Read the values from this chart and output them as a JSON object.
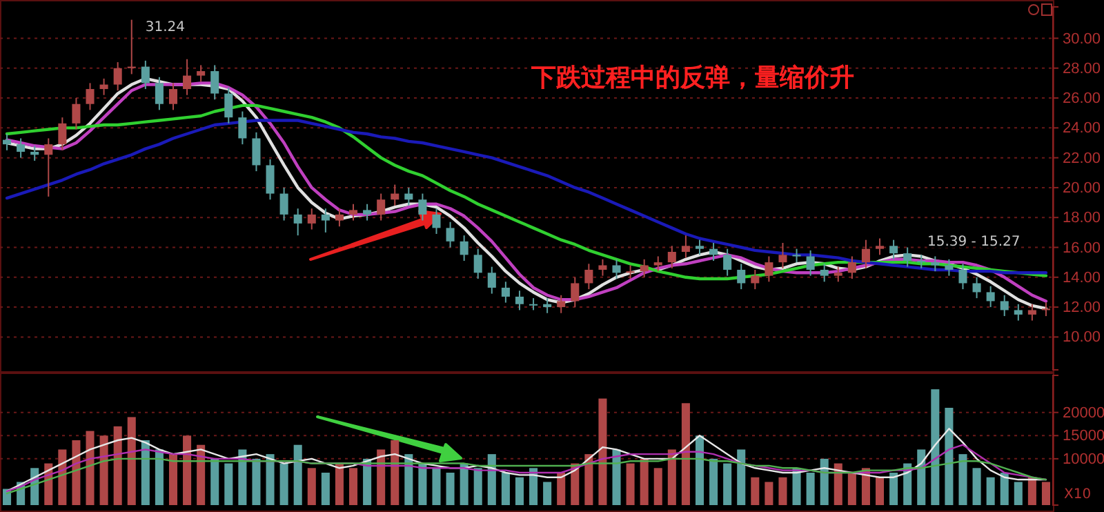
{
  "chart_data": [
    {
      "type": "candlestick",
      "title": "下跌过程中的反弹，量缩价升",
      "tick_labels": "y",
      "grid": "y",
      "ylim": [
        7.8,
        32.1
      ],
      "yticks": [
        {
          "value": 10,
          "label": "10.00"
        },
        {
          "value": 12,
          "label": "12.00"
        },
        {
          "value": 14,
          "label": "14.00"
        },
        {
          "value": 16,
          "label": "16.00"
        },
        {
          "value": 18,
          "label": "18.00"
        },
        {
          "value": 20,
          "label": "20.00"
        },
        {
          "value": 22,
          "label": "22.00"
        },
        {
          "value": 24,
          "label": "24.00"
        },
        {
          "value": 26,
          "label": "26.00"
        },
        {
          "value": 28,
          "label": "28.00"
        },
        {
          "value": 30,
          "label": "30.00"
        }
      ],
      "categories": [
        null,
        null,
        null,
        null,
        null,
        null,
        null,
        null,
        null,
        null,
        null,
        null,
        null,
        null,
        null,
        null,
        null,
        null,
        null,
        null,
        null,
        null,
        null,
        null,
        null,
        null,
        null,
        null,
        null,
        null,
        null,
        null,
        null,
        null,
        null,
        null,
        null,
        null,
        null,
        null,
        null,
        null,
        null,
        null,
        null,
        null,
        null,
        null,
        null,
        null,
        null,
        null,
        null,
        null,
        null,
        null,
        null,
        null,
        null,
        null,
        null,
        null,
        null,
        null,
        null,
        null,
        null,
        null,
        null,
        null,
        null,
        null,
        null,
        null,
        null,
        null
      ],
      "ohlc": [
        [
          23.2,
          23.6,
          22.5,
          22.9
        ],
        [
          22.9,
          23.3,
          22.0,
          22.4
        ],
        [
          22.4,
          22.8,
          21.8,
          22.2
        ],
        [
          22.2,
          23.3,
          19.4,
          22.9
        ],
        [
          22.9,
          24.7,
          22.5,
          24.3
        ],
        [
          24.3,
          26.0,
          23.9,
          25.6
        ],
        [
          25.6,
          27.0,
          25.2,
          26.6
        ],
        [
          26.6,
          27.3,
          26.2,
          26.9
        ],
        [
          26.9,
          28.4,
          26.5,
          28.0
        ],
        [
          28.0,
          31.24,
          27.6,
          28.1
        ],
        [
          28.1,
          28.5,
          26.6,
          27.0
        ],
        [
          27.0,
          27.4,
          25.2,
          25.6
        ],
        [
          25.6,
          27.0,
          25.2,
          26.6
        ],
        [
          26.6,
          28.6,
          26.2,
          27.5
        ],
        [
          27.5,
          28.2,
          27.1,
          27.8
        ],
        [
          27.8,
          28.2,
          25.9,
          26.3
        ],
        [
          26.3,
          26.7,
          24.3,
          24.7
        ],
        [
          24.7,
          25.1,
          22.9,
          23.3
        ],
        [
          23.3,
          23.7,
          21.1,
          21.5
        ],
        [
          21.5,
          21.9,
          19.2,
          19.6
        ],
        [
          19.6,
          20.0,
          17.8,
          18.2
        ],
        [
          18.2,
          18.6,
          16.8,
          17.6
        ],
        [
          17.6,
          18.6,
          17.2,
          18.2
        ],
        [
          18.2,
          18.6,
          17.0,
          17.8
        ],
        [
          17.8,
          18.6,
          17.4,
          18.2
        ],
        [
          18.2,
          18.9,
          17.8,
          18.5
        ],
        [
          18.5,
          18.9,
          17.8,
          18.2
        ],
        [
          18.2,
          19.6,
          17.8,
          19.2
        ],
        [
          19.2,
          20.2,
          18.8,
          19.6
        ],
        [
          19.6,
          20.0,
          18.8,
          19.2
        ],
        [
          19.2,
          19.6,
          17.8,
          18.2
        ],
        [
          18.2,
          18.6,
          16.9,
          17.3
        ],
        [
          17.3,
          17.7,
          16.0,
          16.4
        ],
        [
          16.4,
          16.8,
          15.1,
          15.5
        ],
        [
          15.5,
          15.9,
          13.9,
          14.3
        ],
        [
          14.3,
          14.7,
          12.9,
          13.3
        ],
        [
          13.3,
          13.7,
          12.3,
          12.7
        ],
        [
          12.7,
          13.1,
          11.8,
          12.2
        ],
        [
          12.2,
          12.6,
          11.8,
          12.2
        ],
        [
          12.2,
          12.6,
          11.6,
          12.0
        ],
        [
          12.0,
          12.8,
          11.6,
          12.4
        ],
        [
          12.4,
          14.0,
          12.0,
          13.6
        ],
        [
          13.6,
          14.9,
          13.2,
          14.5
        ],
        [
          14.5,
          15.2,
          14.1,
          14.8
        ],
        [
          14.8,
          15.2,
          13.9,
          14.3
        ],
        [
          14.3,
          14.8,
          13.9,
          14.4
        ],
        [
          14.4,
          15.2,
          14.0,
          14.8
        ],
        [
          14.8,
          15.4,
          14.4,
          15.0
        ],
        [
          15.0,
          16.1,
          14.6,
          15.7
        ],
        [
          15.7,
          16.8,
          15.3,
          16.1
        ],
        [
          16.1,
          16.5,
          15.5,
          15.9
        ],
        [
          15.9,
          16.3,
          15.1,
          15.5
        ],
        [
          15.5,
          15.9,
          14.1,
          14.5
        ],
        [
          14.5,
          14.9,
          13.2,
          13.6
        ],
        [
          13.6,
          14.5,
          13.2,
          14.1
        ],
        [
          14.1,
          15.4,
          13.7,
          15.0
        ],
        [
          15.0,
          16.3,
          14.6,
          15.5
        ],
        [
          15.5,
          15.9,
          15.0,
          15.4
        ],
        [
          15.4,
          15.8,
          14.1,
          14.5
        ],
        [
          14.5,
          14.9,
          13.7,
          14.1
        ],
        [
          14.1,
          14.7,
          13.7,
          14.3
        ],
        [
          14.3,
          15.4,
          13.9,
          15.0
        ],
        [
          15.0,
          16.5,
          14.6,
          15.9
        ],
        [
          15.9,
          16.6,
          15.5,
          16.1
        ],
        [
          16.1,
          16.5,
          15.2,
          15.6
        ],
        [
          15.6,
          16.0,
          14.7,
          15.1
        ],
        [
          15.1,
          15.5,
          14.6,
          15.0
        ],
        [
          15.0,
          15.4,
          14.4,
          14.8
        ],
        [
          14.8,
          15.2,
          14.1,
          14.5
        ],
        [
          14.5,
          14.9,
          13.2,
          13.6
        ],
        [
          13.6,
          14.0,
          12.6,
          13.0
        ],
        [
          13.0,
          13.4,
          12.0,
          12.4
        ],
        [
          12.4,
          12.8,
          11.4,
          11.8
        ],
        [
          11.8,
          12.2,
          11.1,
          11.5
        ],
        [
          11.5,
          12.2,
          11.1,
          11.8
        ],
        [
          11.8,
          12.3,
          11.4,
          11.9
        ]
      ],
      "colors": [
        "#5aa0a0",
        "#5aa0a0",
        "#5aa0a0",
        "#b04848",
        "#b04848",
        "#b04848",
        "#b04848",
        "#b04848",
        "#b04848",
        "#b04848",
        "#5aa0a0",
        "#5aa0a0",
        "#b04848",
        "#b04848",
        "#b04848",
        "#5aa0a0",
        "#5aa0a0",
        "#5aa0a0",
        "#5aa0a0",
        "#5aa0a0",
        "#5aa0a0",
        "#5aa0a0",
        "#b04848",
        "#5aa0a0",
        "#b04848",
        "#b04848",
        "#5aa0a0",
        "#b04848",
        "#b04848",
        "#5aa0a0",
        "#5aa0a0",
        "#5aa0a0",
        "#5aa0a0",
        "#5aa0a0",
        "#5aa0a0",
        "#5aa0a0",
        "#5aa0a0",
        "#5aa0a0",
        "#5aa0a0",
        "#5aa0a0",
        "#b04848",
        "#b04848",
        "#b04848",
        "#b04848",
        "#5aa0a0",
        "#b04848",
        "#b04848",
        "#b04848",
        "#b04848",
        "#b04848",
        "#5aa0a0",
        "#5aa0a0",
        "#5aa0a0",
        "#5aa0a0",
        "#b04848",
        "#b04848",
        "#b04848",
        "#5aa0a0",
        "#5aa0a0",
        "#5aa0a0",
        "#b04848",
        "#b04848",
        "#b04848",
        "#b04848",
        "#5aa0a0",
        "#5aa0a0",
        "#5aa0a0",
        "#5aa0a0",
        "#5aa0a0",
        "#5aa0a0",
        "#5aa0a0",
        "#5aa0a0",
        "#5aa0a0",
        "#5aa0a0",
        "#b04848",
        "#b04848"
      ],
      "series": [
        {
          "type": "line",
          "color": "#e0e0e0",
          "values": [
            23.0,
            22.8,
            22.6,
            22.6,
            22.9,
            23.5,
            24.3,
            25.3,
            26.3,
            26.9,
            27.3,
            27.1,
            26.9,
            26.9,
            26.9,
            26.8,
            26.6,
            25.8,
            24.7,
            23.1,
            21.5,
            20.0,
            19.0,
            18.3,
            17.9,
            18.1,
            18.2,
            18.4,
            18.7,
            18.9,
            18.9,
            18.7,
            18.1,
            17.3,
            16.3,
            15.4,
            14.4,
            13.6,
            13.0,
            12.5,
            12.3,
            12.5,
            12.9,
            13.5,
            14.0,
            14.3,
            14.5,
            14.5,
            14.8,
            15.2,
            15.5,
            15.7,
            15.5,
            15.1,
            14.7,
            14.5,
            14.6,
            14.9,
            15.0,
            14.9,
            14.6,
            14.5,
            14.7,
            15.1,
            15.4,
            15.5,
            15.4,
            15.1,
            14.9,
            14.6,
            14.2,
            13.7,
            13.1,
            12.5,
            12.1,
            11.9
          ]
        },
        {
          "type": "line",
          "color": "#c040c0",
          "values": [
            23.2,
            23.0,
            22.8,
            22.7,
            22.6,
            23.0,
            23.8,
            24.7,
            25.6,
            26.5,
            26.9,
            26.9,
            26.9,
            26.9,
            27.0,
            27.0,
            26.7,
            26.2,
            25.4,
            24.3,
            23.0,
            21.4,
            20.0,
            19.2,
            18.5,
            18.2,
            18.2,
            18.3,
            18.4,
            18.7,
            18.9,
            18.9,
            18.6,
            18.1,
            17.3,
            16.4,
            15.3,
            14.2,
            13.3,
            12.8,
            12.5,
            12.5,
            12.7,
            13.0,
            13.3,
            13.8,
            14.3,
            14.6,
            14.8,
            14.9,
            15.1,
            15.3,
            15.5,
            15.3,
            14.9,
            14.6,
            14.4,
            14.3,
            14.3,
            14.3,
            14.4,
            14.6,
            14.8,
            15.0,
            15.2,
            15.2,
            15.1,
            15.1,
            15.0,
            15.0,
            14.8,
            14.5,
            14.0,
            13.4,
            12.8,
            12.4
          ]
        },
        {
          "type": "line",
          "color": "#30d030",
          "values": [
            23.6,
            23.7,
            23.8,
            23.9,
            24.0,
            24.0,
            24.1,
            24.2,
            24.2,
            24.3,
            24.4,
            24.5,
            24.6,
            24.7,
            24.8,
            25.1,
            25.3,
            25.5,
            25.5,
            25.3,
            25.1,
            24.9,
            24.7,
            24.4,
            24.0,
            23.4,
            22.7,
            22.0,
            21.5,
            21.1,
            20.8,
            20.3,
            19.8,
            19.4,
            18.9,
            18.5,
            18.1,
            17.7,
            17.3,
            16.9,
            16.5,
            16.2,
            15.8,
            15.5,
            15.2,
            14.9,
            14.7,
            14.4,
            14.2,
            14.0,
            13.9,
            13.9,
            13.9,
            14.0,
            14.1,
            14.2,
            14.4,
            14.6,
            14.8,
            14.9,
            15.0,
            15.0,
            15.0,
            15.0,
            15.0,
            15.0,
            14.9,
            14.9,
            14.8,
            14.7,
            14.6,
            14.5,
            14.4,
            14.3,
            14.2,
            14.1
          ]
        },
        {
          "type": "line",
          "color": "#1a1ab8",
          "values": [
            19.3,
            19.6,
            19.9,
            20.2,
            20.5,
            20.9,
            21.2,
            21.6,
            21.9,
            22.2,
            22.6,
            22.9,
            23.3,
            23.6,
            23.9,
            24.2,
            24.3,
            24.4,
            24.5,
            24.5,
            24.5,
            24.5,
            24.3,
            24.1,
            23.9,
            23.7,
            23.6,
            23.4,
            23.3,
            23.1,
            23.0,
            22.8,
            22.6,
            22.4,
            22.2,
            22.0,
            21.7,
            21.4,
            21.1,
            20.8,
            20.4,
            20.0,
            19.7,
            19.3,
            18.9,
            18.5,
            18.1,
            17.7,
            17.3,
            16.9,
            16.6,
            16.4,
            16.2,
            16.0,
            15.8,
            15.7,
            15.6,
            15.5,
            15.5,
            15.4,
            15.3,
            15.1,
            15.0,
            14.9,
            14.8,
            14.7,
            14.6,
            14.5,
            14.5,
            14.4,
            14.4,
            14.4,
            14.3,
            14.3,
            14.3,
            14.3
          ]
        }
      ],
      "annotations": [
        "31.24",
        "15.39 - 15.27"
      ]
    },
    {
      "type": "bar",
      "tick_labels": "y",
      "grid": "y",
      "ylim": [
        0,
        28000
      ],
      "yticks": [
        10000,
        15000,
        20000
      ],
      "categories": [
        null,
        null,
        null,
        null,
        null,
        null,
        null,
        null,
        null,
        null,
        null,
        null,
        null,
        null,
        null,
        null,
        null,
        null,
        null,
        null,
        null,
        null,
        null,
        null,
        null,
        null,
        null,
        null,
        null,
        null,
        null,
        null,
        null,
        null,
        null,
        null,
        null,
        null,
        null,
        null,
        null,
        null,
        null,
        null,
        null,
        null,
        null,
        null,
        null,
        null,
        null,
        null,
        null,
        null,
        null,
        null,
        null,
        null,
        null,
        null,
        null,
        null,
        null,
        null,
        null,
        null,
        null,
        null,
        null,
        null,
        null,
        null,
        null,
        null,
        null,
        null
      ],
      "values": [
        3500,
        5000,
        8000,
        9000,
        12000,
        14000,
        16000,
        15000,
        17000,
        19000,
        14000,
        12000,
        11000,
        15000,
        13000,
        10000,
        9000,
        12000,
        10000,
        11000,
        9000,
        13000,
        8000,
        7000,
        9000,
        8000,
        10000,
        12000,
        14000,
        11000,
        9000,
        8000,
        7000,
        9000,
        8000,
        11000,
        7000,
        6000,
        8000,
        5000,
        7000,
        9000,
        11000,
        23000,
        12000,
        9000,
        10000,
        8000,
        12000,
        22000,
        15000,
        10000,
        9000,
        12000,
        6000,
        5000,
        6000,
        8000,
        7000,
        10000,
        9000,
        7000,
        8000,
        6000,
        7000,
        9000,
        12000,
        25000,
        21000,
        11000,
        8000,
        6000,
        7000,
        5000,
        6000,
        5000
      ],
      "colors": [
        "#5aa0a0",
        "#5aa0a0",
        "#5aa0a0",
        "#b04848",
        "#b04848",
        "#b04848",
        "#b04848",
        "#b04848",
        "#b04848",
        "#b04848",
        "#5aa0a0",
        "#5aa0a0",
        "#b04848",
        "#b04848",
        "#b04848",
        "#5aa0a0",
        "#5aa0a0",
        "#5aa0a0",
        "#5aa0a0",
        "#5aa0a0",
        "#5aa0a0",
        "#5aa0a0",
        "#b04848",
        "#5aa0a0",
        "#b04848",
        "#b04848",
        "#5aa0a0",
        "#b04848",
        "#b04848",
        "#5aa0a0",
        "#5aa0a0",
        "#5aa0a0",
        "#5aa0a0",
        "#5aa0a0",
        "#5aa0a0",
        "#5aa0a0",
        "#5aa0a0",
        "#5aa0a0",
        "#5aa0a0",
        "#5aa0a0",
        "#b04848",
        "#b04848",
        "#b04848",
        "#b04848",
        "#5aa0a0",
        "#b04848",
        "#b04848",
        "#b04848",
        "#b04848",
        "#b04848",
        "#5aa0a0",
        "#5aa0a0",
        "#5aa0a0",
        "#5aa0a0",
        "#b04848",
        "#b04848",
        "#b04848",
        "#5aa0a0",
        "#5aa0a0",
        "#5aa0a0",
        "#b04848",
        "#b04848",
        "#b04848",
        "#b04848",
        "#5aa0a0",
        "#5aa0a0",
        "#5aa0a0",
        "#5aa0a0",
        "#5aa0a0",
        "#5aa0a0",
        "#5aa0a0",
        "#5aa0a0",
        "#5aa0a0",
        "#5aa0a0",
        "#b04848",
        "#b04848"
      ],
      "series": [
        {
          "type": "line",
          "color": "#e8e8e8",
          "values": [
            3000,
            4500,
            6000,
            7500,
            9000,
            10500,
            12000,
            13000,
            14000,
            14500,
            13500,
            12000,
            11000,
            11500,
            12000,
            11000,
            10000,
            10500,
            11000,
            10000,
            9000,
            9500,
            10000,
            9000,
            8000,
            8500,
            9500,
            10500,
            11000,
            10000,
            9000,
            8500,
            8000,
            8000,
            8500,
            8000,
            7000,
            6500,
            6500,
            6000,
            6000,
            7500,
            10000,
            12500,
            12000,
            11000,
            10000,
            10000,
            10000,
            12500,
            15000,
            13000,
            11000,
            9000,
            8000,
            7500,
            7000,
            7000,
            7500,
            8000,
            7500,
            7000,
            6500,
            6000,
            6000,
            7000,
            9000,
            13000,
            16500,
            13500,
            10000,
            7500,
            6000,
            5500,
            5500,
            5500
          ]
        },
        {
          "type": "line",
          "color": "#b030b0",
          "values": [
            3000,
            4000,
            5500,
            6500,
            7500,
            9000,
            10000,
            10500,
            11000,
            11500,
            12000,
            11500,
            11000,
            11000,
            10500,
            10000,
            10000,
            10000,
            9500,
            9500,
            9500,
            9500,
            9000,
            9000,
            9000,
            9000,
            8500,
            8500,
            8500,
            8500,
            8000,
            8000,
            8000,
            8000,
            7500,
            7500,
            7500,
            7000,
            7000,
            7000,
            7000,
            8000,
            9000,
            10000,
            10500,
            11000,
            11000,
            11000,
            11000,
            11500,
            11500,
            11000,
            10000,
            9000,
            8500,
            8000,
            7500,
            7500,
            7500,
            7000,
            7000,
            7000,
            7000,
            7000,
            7500,
            7500,
            8000,
            10000,
            12000,
            13000,
            11000,
            9000,
            7000,
            6500,
            6000,
            5500
          ]
        },
        {
          "type": "line",
          "color": "#50b050",
          "values": [
            2500,
            3500,
            4500,
            5500,
            6500,
            7500,
            8500,
            9500,
            10000,
            10000,
            10000,
            10000,
            9500,
            9500,
            9500,
            9500,
            9500,
            9500,
            9500,
            9500,
            9500,
            9500,
            9000,
            9000,
            9000,
            9000,
            9000,
            9000,
            9000,
            9000,
            9000,
            9000,
            9000,
            9000,
            8500,
            8500,
            8500,
            8500,
            8500,
            8500,
            8500,
            8500,
            9000,
            9000,
            9000,
            9500,
            9500,
            9500,
            10000,
            10000,
            10000,
            9500,
            9500,
            9000,
            8500,
            8500,
            8000,
            8000,
            7500,
            7000,
            7000,
            7000,
            7500,
            7500,
            7500,
            8000,
            8000,
            8500,
            9000,
            9500,
            9500,
            9000,
            8000,
            7000,
            6000,
            5500
          ]
        }
      ],
      "annotations": [
        "X10"
      ]
    }
  ]
}
